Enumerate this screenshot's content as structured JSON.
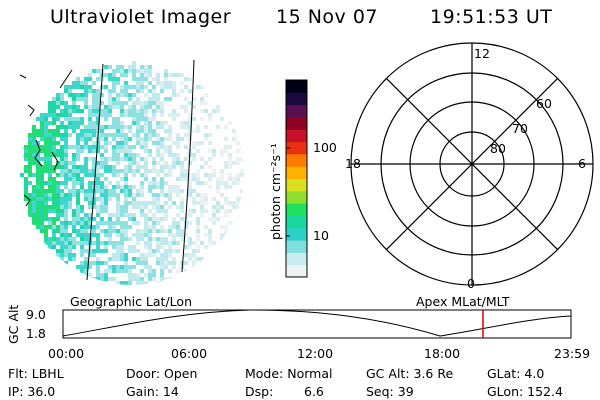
{
  "header": {
    "title": "Ultraviolet Imager",
    "date": "15 Nov 07",
    "time": "19:51:53 UT"
  },
  "colorbar": {
    "unit_label": "photon cm⁻²s⁻¹",
    "ticks": [
      "100",
      "10"
    ],
    "scale": "log",
    "colors": [
      "#eef1f1",
      "#c9ecef",
      "#7fdede",
      "#2ecfc9",
      "#18d8a0",
      "#20e060",
      "#8ee030",
      "#d8e020",
      "#ffb000",
      "#ff7a00",
      "#e83010",
      "#c8102a",
      "#900020",
      "#5a1050",
      "#1c0a40",
      "#000018"
    ]
  },
  "polar_plot": {
    "labels": {
      "top": "12",
      "left": "18",
      "right": "6",
      "bottom": "0",
      "lat_60": "60",
      "lat_70": "70",
      "lat_80": "80"
    }
  },
  "timeline": {
    "y_label": "GC Alt",
    "y_ticks": [
      "9.0",
      "1.8"
    ],
    "left_title": "Geographic Lat/Lon",
    "right_title": "Apex MLat/MLT",
    "x_ticks": [
      "00:00",
      "06:00",
      "12:00",
      "18:00",
      "23:59"
    ],
    "marker_color": "#e00000"
  },
  "info": {
    "flt": "Flt: LBHL",
    "ip": "IP: 36.0",
    "door": "Door: Open",
    "gain": "Gain: 14",
    "mode": "Mode: Normal",
    "dsp_label": "Dsp:",
    "dsp_value": "6.6",
    "gcalt": "GC Alt: 3.6 Re",
    "seq": "Seq: 39",
    "glat": "GLat: 4.0",
    "glon": "GLon: 152.4"
  }
}
